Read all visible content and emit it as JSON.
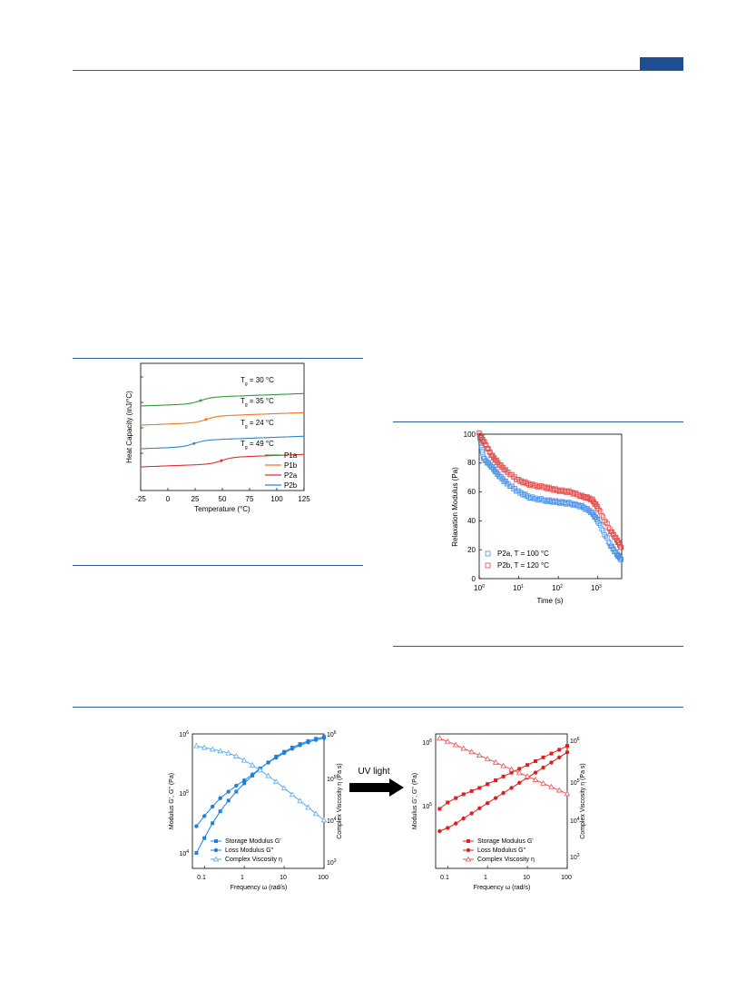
{
  "figure_dsc": {
    "xlabel": "Temperature (°C)",
    "ylabel": "Heat Capacity (mJ/°C)",
    "xticks": [
      "-25",
      "0",
      "25",
      "50",
      "75",
      "100",
      "125"
    ],
    "annotations": [
      {
        "sym": "T",
        "sub": "g",
        "value": " = 30 °C"
      },
      {
        "sym": "T",
        "sub": "g",
        "value": " = 35 °C"
      },
      {
        "sym": "T",
        "sub": "g",
        "value": " = 24 °C"
      },
      {
        "sym": "T",
        "sub": "g",
        "value": " = 49 °C"
      }
    ],
    "legend": [
      {
        "label": "P1a",
        "color": "#2e9c3c"
      },
      {
        "label": "P1b",
        "color": "#f07820"
      },
      {
        "label": "P2a",
        "color": "#e0302a"
      },
      {
        "label": "P2b",
        "color": "#2b86d8"
      }
    ]
  },
  "figure_relax": {
    "xlabel": "Time (s)",
    "ylabel": "Relaxation Modulus (Pa)",
    "yticks": [
      "0",
      "20",
      "40",
      "60",
      "80",
      "100"
    ],
    "xticks": [
      {
        "base": "10",
        "exp": "0"
      },
      {
        "base": "10",
        "exp": "1"
      },
      {
        "base": "10",
        "exp": "2"
      },
      {
        "base": "10",
        "exp": "3"
      }
    ],
    "legend": [
      {
        "label": "P2a, T = 100 °C",
        "color": "#4a90e2"
      },
      {
        "label": "P2b, T = 120 °C",
        "color": "#e04a4a"
      }
    ]
  },
  "figure_rheo": {
    "arrow_label": "UV light",
    "left": {
      "ylabel_left": "Modulus G', G\" (Pa)",
      "ylabel_right": "Complex Viscosity η (Pa s)",
      "xlabel": "Frequency ω (rad/s)",
      "xticks": [
        "0.1",
        "1",
        "10",
        "100"
      ],
      "yticks_left": [
        {
          "base": "10",
          "exp": "6"
        },
        {
          "base": "10",
          "exp": "5"
        },
        {
          "base": "10",
          "exp": "4"
        }
      ],
      "yticks_right": [
        {
          "base": "10",
          "exp": "6"
        },
        {
          "base": "10",
          "exp": "5"
        },
        {
          "base": "10",
          "exp": "4"
        },
        {
          "base": "10",
          "exp": "3"
        }
      ],
      "legend": [
        "Storage Modulus G'",
        "Loss Modulus G\"",
        "Complex Viscosity η"
      ],
      "color": "#1f7fe0",
      "color_light": "#5aa8ec"
    },
    "right": {
      "ylabel_left": "Modulus G', G\" (Pa)",
      "ylabel_right": "Complex Viscosity η (Pa s)",
      "xlabel": "Frequency ω (rad/s)",
      "xticks": [
        "0.1",
        "1",
        "10",
        "100"
      ],
      "yticks_left": [
        {
          "base": "10",
          "exp": "6"
        },
        {
          "base": "10",
          "exp": "5"
        }
      ],
      "yticks_right": [
        {
          "base": "10",
          "exp": "6"
        },
        {
          "base": "10",
          "exp": "5"
        },
        {
          "base": "10",
          "exp": "4"
        },
        {
          "base": "10",
          "exp": "3"
        }
      ],
      "legend": [
        "Storage Modulus G'",
        "Loss Modulus G\"",
        "Complex Viscosity η"
      ],
      "color": "#e01e1e",
      "color_light": "#f05050"
    }
  },
  "chart_data": [
    {
      "type": "line",
      "xlabel": "Temperature (°C)",
      "ylabel": "Heat Capacity (mJ/°C)",
      "xlim": [
        -25,
        125
      ],
      "series": [
        {
          "name": "P1a",
          "Tg": 30
        },
        {
          "name": "P1b",
          "Tg": 35
        },
        {
          "name": "P2a",
          "Tg": 49
        },
        {
          "name": "P2b",
          "Tg": 24
        }
      ]
    },
    {
      "type": "scatter",
      "xlabel": "Time (s)",
      "ylabel": "Relaxation Modulus (Pa)",
      "xscale": "log",
      "xlim": [
        1,
        4000
      ],
      "ylim": [
        0,
        100
      ],
      "series": [
        {
          "name": "P2a, T = 100 °C",
          "x": [
            1,
            1.3,
            2,
            3,
            5,
            10,
            20,
            50,
            100,
            200,
            400,
            700,
            1000,
            2000,
            3000,
            4000
          ],
          "y": [
            100,
            83,
            78,
            72,
            66,
            60,
            56,
            54,
            53,
            52,
            50,
            46,
            40,
            24,
            17,
            13
          ]
        },
        {
          "name": "P2b, T = 120 °C",
          "x": [
            1,
            1.3,
            2,
            3,
            5,
            10,
            20,
            50,
            100,
            200,
            400,
            700,
            1000,
            2000,
            3000,
            4000
          ],
          "y": [
            100,
            95,
            86,
            80,
            74,
            68,
            65,
            63,
            61,
            60,
            57,
            55,
            49,
            34,
            27,
            21
          ]
        }
      ]
    },
    {
      "type": "line",
      "xlabel": "Frequency ω (rad/s)",
      "xscale": "log",
      "yscale": "log",
      "xlim": [
        0.05,
        100
      ],
      "series": [
        {
          "name": "Storage Modulus G'",
          "x": [
            0.063,
            0.1,
            0.16,
            0.25,
            0.4,
            0.63,
            1,
            1.6,
            2.5,
            4,
            6.3,
            10,
            16,
            25,
            40,
            63,
            100
          ],
          "y": [
            4.0,
            4.25,
            4.5,
            4.7,
            4.88,
            5.03,
            5.17,
            5.3,
            5.42,
            5.52,
            5.62,
            5.7,
            5.77,
            5.83,
            5.88,
            5.92,
            5.95
          ]
        },
        {
          "name": "Loss Modulus G\"",
          "x": [
            0.063,
            0.1,
            0.16,
            0.25,
            0.4,
            0.63,
            1,
            1.6,
            2.5,
            4,
            6.3,
            10,
            16,
            25,
            40,
            63,
            100
          ],
          "y": [
            4.45,
            4.62,
            4.78,
            4.92,
            5.03,
            5.13,
            5.22,
            5.32,
            5.42,
            5.52,
            5.6,
            5.68,
            5.75,
            5.81,
            5.86,
            5.9,
            5.93
          ]
        },
        {
          "name": "Complex Viscosity η",
          "x": [
            0.063,
            0.1,
            0.16,
            0.25,
            0.4,
            0.63,
            1,
            1.6,
            2.5,
            4,
            6.3,
            10,
            16,
            25,
            40,
            63,
            100
          ],
          "y": [
            5.72,
            5.68,
            5.64,
            5.6,
            5.55,
            5.48,
            5.38,
            5.27,
            5.15,
            5.02,
            4.88,
            4.73,
            4.58,
            4.43,
            4.28,
            4.13,
            3.98
          ]
        }
      ]
    },
    {
      "type": "line",
      "xlabel": "Frequency ω (rad/s)",
      "xscale": "log",
      "yscale": "log",
      "xlim": [
        0.05,
        100
      ],
      "series": [
        {
          "name": "Storage Modulus G'",
          "x": [
            0.063,
            0.1,
            0.16,
            0.25,
            0.4,
            0.63,
            1,
            1.6,
            2.5,
            4,
            6.3,
            10,
            16,
            25,
            40,
            63,
            100
          ],
          "y": [
            4.95,
            5.05,
            5.12,
            5.18,
            5.23,
            5.28,
            5.34,
            5.4,
            5.46,
            5.52,
            5.58,
            5.64,
            5.7,
            5.76,
            5.82,
            5.88,
            5.94
          ]
        },
        {
          "name": "Loss Modulus G\"",
          "x": [
            0.063,
            0.1,
            0.16,
            0.25,
            0.4,
            0.63,
            1,
            1.6,
            2.5,
            4,
            6.3,
            10,
            16,
            25,
            40,
            63,
            100
          ],
          "y": [
            4.6,
            4.65,
            4.72,
            4.8,
            4.88,
            4.96,
            5.04,
            5.12,
            5.2,
            5.28,
            5.36,
            5.44,
            5.52,
            5.6,
            5.68,
            5.76,
            5.84
          ]
        },
        {
          "name": "Complex Viscosity η",
          "x": [
            0.063,
            0.1,
            0.16,
            0.25,
            0.4,
            0.63,
            1,
            1.6,
            2.5,
            4,
            6.3,
            10,
            16,
            25,
            40,
            63,
            100
          ],
          "y": [
            6.05,
            5.97,
            5.88,
            5.79,
            5.7,
            5.61,
            5.52,
            5.43,
            5.34,
            5.25,
            5.16,
            5.07,
            4.98,
            4.89,
            4.8,
            4.71,
            4.62
          ]
        }
      ]
    }
  ]
}
